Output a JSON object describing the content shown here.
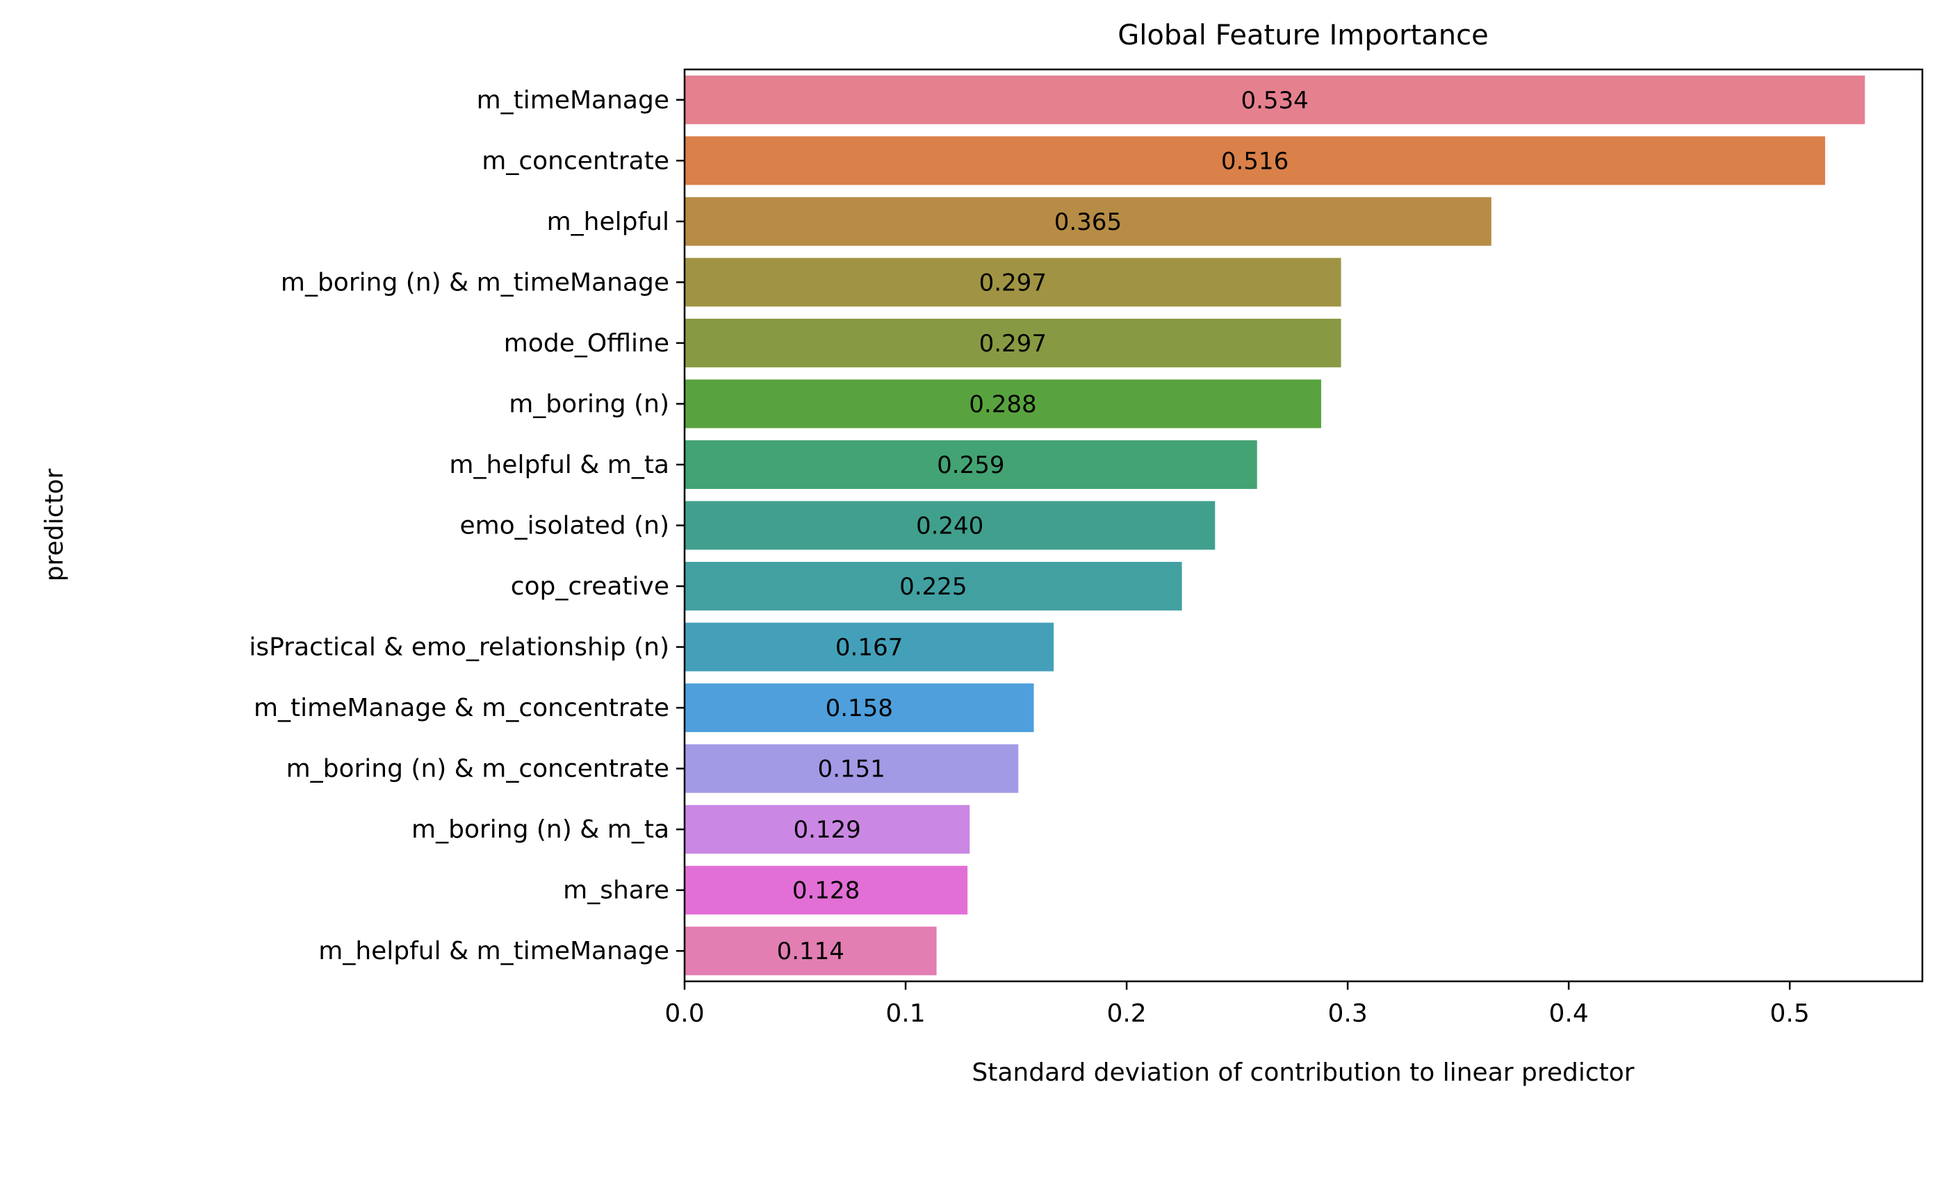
{
  "chart_data": {
    "type": "bar",
    "orientation": "horizontal",
    "title": "Global Feature Importance",
    "xlabel": "Standard deviation of contribution to linear predictor",
    "ylabel": "predictor",
    "xlim": [
      0,
      0.56
    ],
    "xticks": [
      0.0,
      0.1,
      0.2,
      0.3,
      0.4,
      0.5
    ],
    "xtick_labels": [
      "0.0",
      "0.1",
      "0.2",
      "0.3",
      "0.4",
      "0.5"
    ],
    "grid": false,
    "categories": [
      "m_timeManage",
      "m_concentrate",
      "m_helpful",
      "m_boring (n) & m_timeManage",
      "mode_Offline",
      "m_boring (n)",
      "m_helpful & m_ta",
      "emo_isolated (n)",
      "cop_creative",
      "isPractical & emo_relationship (n)",
      "m_timeManage & m_concentrate",
      "m_boring (n) & m_concentrate",
      "m_boring (n) & m_ta",
      "m_share",
      "m_helpful & m_timeManage"
    ],
    "values": [
      0.534,
      0.516,
      0.365,
      0.297,
      0.297,
      0.288,
      0.259,
      0.24,
      0.225,
      0.167,
      0.158,
      0.151,
      0.129,
      0.128,
      0.114
    ],
    "data_labels": [
      "0.534",
      "0.516",
      "0.365",
      "0.297",
      "0.297",
      "0.288",
      "0.259",
      "0.240",
      "0.225",
      "0.167",
      "0.158",
      "0.151",
      "0.129",
      "0.128",
      "0.114"
    ],
    "colors": [
      "#e5808f",
      "#da8049",
      "#b78c45",
      "#a09444",
      "#879a43",
      "#59a33f",
      "#43a373",
      "#41a08d",
      "#42a0a1",
      "#44a0b9",
      "#4e9fdb",
      "#a39ae6",
      "#cb87e4",
      "#e26fd6",
      "#e27eb2"
    ]
  }
}
